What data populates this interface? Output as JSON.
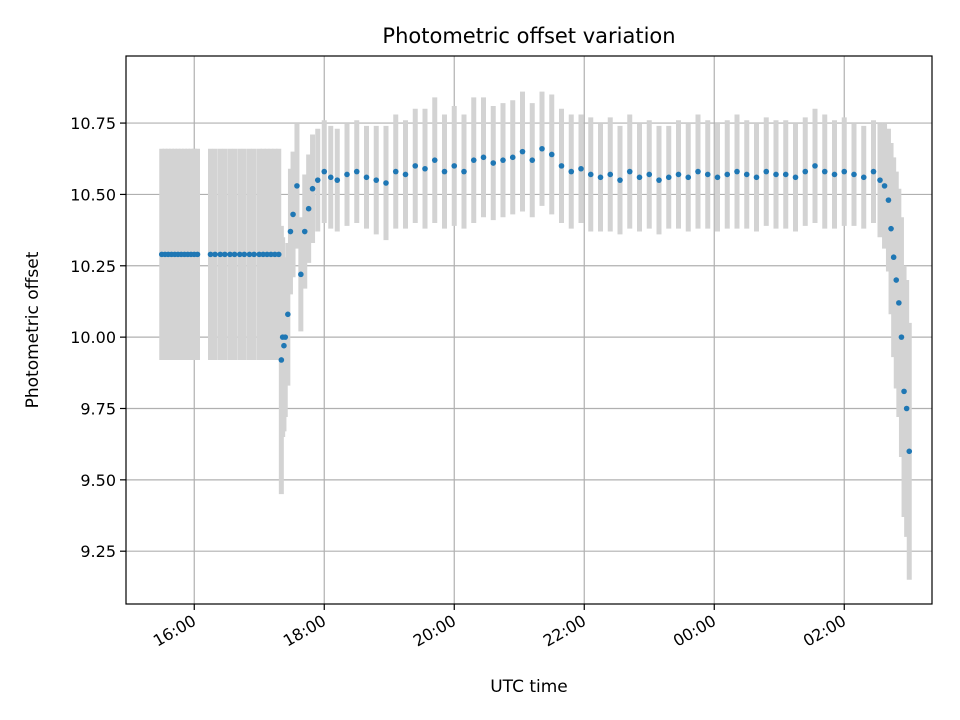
{
  "chart_data": {
    "type": "scatter",
    "title": "Photometric offset variation",
    "xlabel": "UTC time",
    "ylabel": "Photometric offset",
    "x_unit": "hours since 16:00 UTC",
    "xlim": [
      -1.05,
      11.35
    ],
    "ylim": [
      9.065,
      10.985
    ],
    "grid": true,
    "legend": "none",
    "x_ticks": [
      0,
      2,
      4,
      6,
      8,
      10
    ],
    "x_tick_labels": [
      "16:00",
      "18:00",
      "20:00",
      "22:00",
      "00:00",
      "02:00"
    ],
    "y_ticks": [
      9.25,
      9.5,
      9.75,
      10.0,
      10.25,
      10.5,
      10.75
    ],
    "y_tick_labels": [
      "9.25",
      "9.50",
      "9.75",
      "10.00",
      "10.25",
      "10.50",
      "10.75"
    ],
    "point_color": "#1f77b4",
    "errorbar_color": "#d3d3d3",
    "series": [
      {
        "name": "Photometric offset",
        "x": [
          -0.5,
          -0.45,
          -0.4,
          -0.35,
          -0.3,
          -0.25,
          -0.2,
          -0.15,
          -0.1,
          -0.05,
          0.0,
          0.05,
          0.25,
          0.32,
          0.4,
          0.47,
          0.55,
          0.62,
          0.7,
          0.77,
          0.85,
          0.92,
          1.0,
          1.06,
          1.12,
          1.18,
          1.24,
          1.3,
          1.34,
          1.36,
          1.38,
          1.4,
          1.44,
          1.48,
          1.52,
          1.58,
          1.64,
          1.7,
          1.76,
          1.82,
          1.9,
          2.0,
          2.1,
          2.2,
          2.35,
          2.5,
          2.65,
          2.8,
          2.95,
          3.1,
          3.25,
          3.4,
          3.55,
          3.7,
          3.85,
          4.0,
          4.15,
          4.3,
          4.45,
          4.6,
          4.75,
          4.9,
          5.05,
          5.2,
          5.35,
          5.5,
          5.65,
          5.8,
          5.95,
          6.1,
          6.25,
          6.4,
          6.55,
          6.7,
          6.85,
          7.0,
          7.15,
          7.3,
          7.45,
          7.6,
          7.75,
          7.9,
          8.05,
          8.2,
          8.35,
          8.5,
          8.65,
          8.8,
          8.95,
          9.1,
          9.25,
          9.4,
          9.55,
          9.7,
          9.85,
          10.0,
          10.15,
          10.3,
          10.45,
          10.55,
          10.62,
          10.68,
          10.72,
          10.76,
          10.8,
          10.84,
          10.88,
          10.92,
          10.96,
          11.0
        ],
        "y": [
          10.29,
          10.29,
          10.29,
          10.29,
          10.29,
          10.29,
          10.29,
          10.29,
          10.29,
          10.29,
          10.29,
          10.29,
          10.29,
          10.29,
          10.29,
          10.29,
          10.29,
          10.29,
          10.29,
          10.29,
          10.29,
          10.29,
          10.29,
          10.29,
          10.29,
          10.29,
          10.29,
          10.29,
          9.92,
          10.0,
          9.97,
          10.0,
          10.08,
          10.37,
          10.43,
          10.53,
          10.22,
          10.37,
          10.45,
          10.52,
          10.55,
          10.58,
          10.56,
          10.55,
          10.57,
          10.58,
          10.56,
          10.55,
          10.54,
          10.58,
          10.57,
          10.6,
          10.59,
          10.62,
          10.58,
          10.6,
          10.58,
          10.62,
          10.63,
          10.61,
          10.62,
          10.63,
          10.65,
          10.62,
          10.66,
          10.64,
          10.6,
          10.58,
          10.59,
          10.57,
          10.56,
          10.57,
          10.55,
          10.58,
          10.56,
          10.57,
          10.55,
          10.56,
          10.57,
          10.56,
          10.58,
          10.57,
          10.56,
          10.57,
          10.58,
          10.57,
          10.56,
          10.58,
          10.57,
          10.57,
          10.56,
          10.58,
          10.6,
          10.58,
          10.57,
          10.58,
          10.57,
          10.56,
          10.58,
          10.55,
          10.53,
          10.48,
          10.38,
          10.28,
          10.2,
          10.12,
          10.0,
          9.81,
          9.75,
          9.6
        ],
        "error": [
          0.37,
          0.37,
          0.37,
          0.37,
          0.37,
          0.37,
          0.37,
          0.37,
          0.37,
          0.37,
          0.37,
          0.37,
          0.37,
          0.37,
          0.37,
          0.37,
          0.37,
          0.37,
          0.37,
          0.37,
          0.37,
          0.37,
          0.37,
          0.37,
          0.37,
          0.37,
          0.37,
          0.37,
          0.47,
          0.35,
          0.3,
          0.28,
          0.25,
          0.22,
          0.22,
          0.22,
          0.2,
          0.2,
          0.19,
          0.19,
          0.18,
          0.18,
          0.18,
          0.18,
          0.18,
          0.18,
          0.18,
          0.19,
          0.2,
          0.2,
          0.19,
          0.2,
          0.21,
          0.22,
          0.2,
          0.21,
          0.2,
          0.22,
          0.21,
          0.2,
          0.2,
          0.2,
          0.21,
          0.2,
          0.2,
          0.21,
          0.2,
          0.2,
          0.19,
          0.2,
          0.19,
          0.2,
          0.19,
          0.2,
          0.19,
          0.19,
          0.19,
          0.18,
          0.19,
          0.19,
          0.2,
          0.19,
          0.19,
          0.19,
          0.2,
          0.19,
          0.19,
          0.19,
          0.19,
          0.19,
          0.19,
          0.19,
          0.2,
          0.2,
          0.19,
          0.19,
          0.18,
          0.18,
          0.18,
          0.2,
          0.22,
          0.25,
          0.3,
          0.35,
          0.38,
          0.4,
          0.42,
          0.44,
          0.45,
          0.45
        ]
      }
    ]
  }
}
